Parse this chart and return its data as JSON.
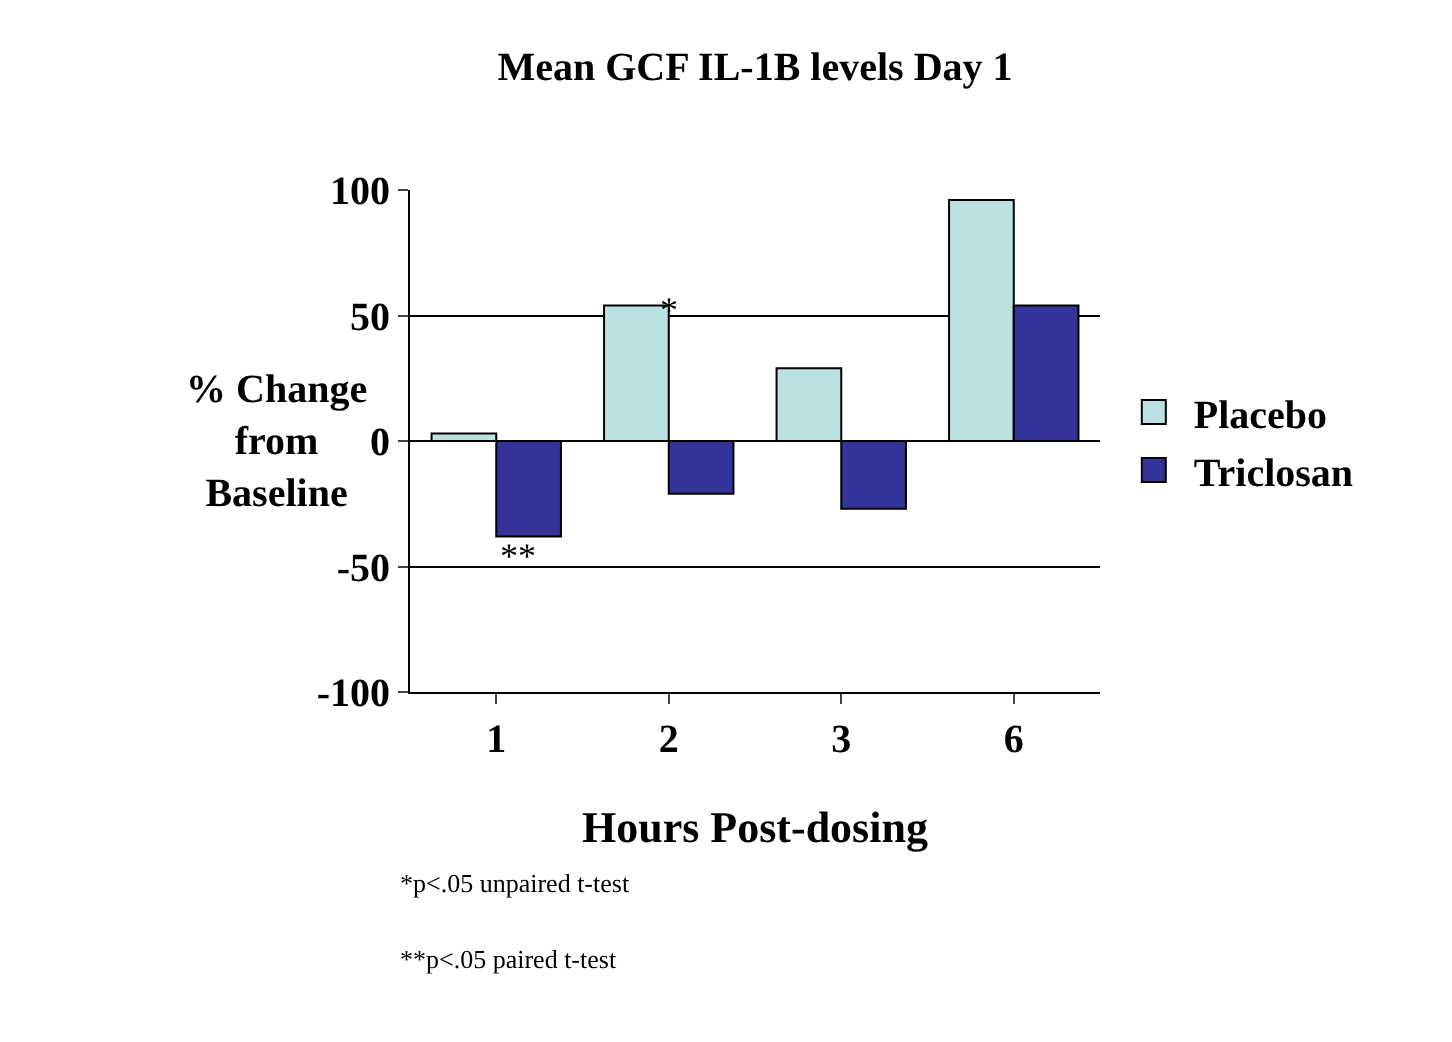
{
  "chart_data": {
    "type": "bar",
    "title": "Mean GCF IL-1B levels Day 1",
    "xlabel": "Hours Post-dosing",
    "ylabel": "% Change from Baseline",
    "categories": [
      "1",
      "2",
      "3",
      "6"
    ],
    "series": [
      {
        "name": "Placebo",
        "color": "#bbe1e3",
        "values": [
          3,
          54,
          29,
          96
        ]
      },
      {
        "name": "Triclosan",
        "color": "#333399",
        "values": [
          -38,
          -21,
          -27,
          54
        ]
      }
    ],
    "ylim": [
      -100,
      100
    ],
    "yticks": [
      -100,
      -50,
      0,
      50,
      100
    ],
    "grid": "y",
    "legend": "right",
    "annotations": [
      "*",
      "**",
      "*p<.05 unpaired t-test",
      "**p<.05 paired t-test"
    ]
  }
}
